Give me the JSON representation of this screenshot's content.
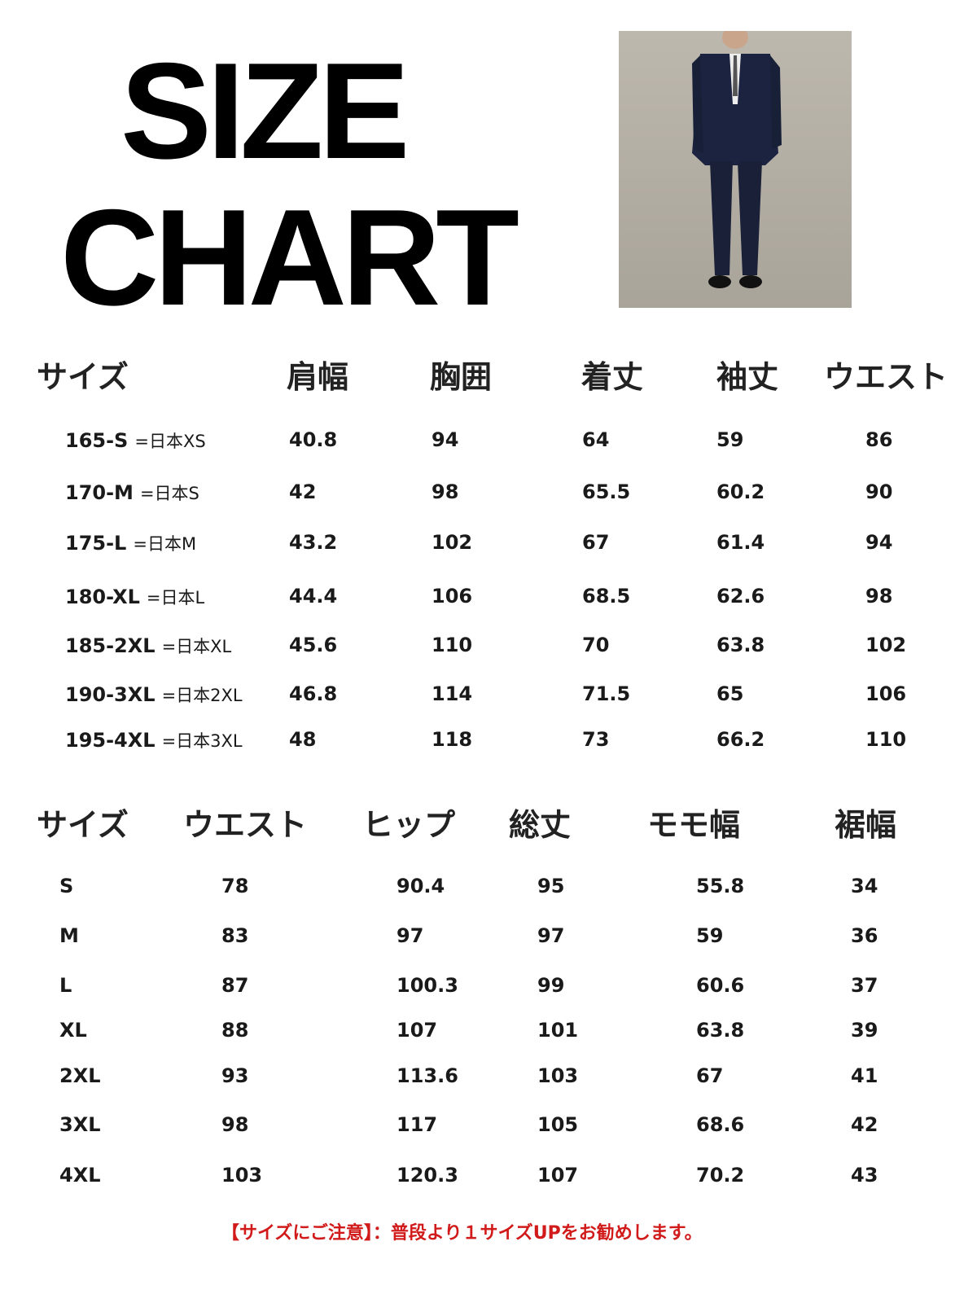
{
  "title_line1": "SIZE",
  "title_line2": "CHART",
  "jacket": {
    "headers": [
      "サイズ",
      "肩幅",
      "胸囲",
      "着丈",
      "袖丈",
      "ウエスト"
    ],
    "rows": [
      {
        "size": "165-S",
        "jp": "=日本XS",
        "values": [
          "40.8",
          "94",
          "64",
          "59",
          "86"
        ]
      },
      {
        "size": "170-M",
        "jp": "=日本S",
        "values": [
          "42",
          "98",
          "65.5",
          "60.2",
          "90"
        ]
      },
      {
        "size": "175-L",
        "jp": "=日本M",
        "values": [
          "43.2",
          "102",
          "67",
          "61.4",
          "94"
        ]
      },
      {
        "size": "180-XL",
        "jp": "=日本L",
        "values": [
          "44.4",
          "106",
          "68.5",
          "62.6",
          "98"
        ]
      },
      {
        "size": "185-2XL",
        "jp": "=日本XL",
        "values": [
          "45.6",
          "110",
          "70",
          "63.8",
          "102"
        ]
      },
      {
        "size": "190-3XL",
        "jp": "=日本2XL",
        "values": [
          "46.8",
          "114",
          "71.5",
          "65",
          "106"
        ]
      },
      {
        "size": "195-4XL",
        "jp": "=日本3XL",
        "values": [
          "48",
          "118",
          "73",
          "66.2",
          "110"
        ]
      }
    ]
  },
  "pants": {
    "headers": [
      "サイズ",
      "ウエスト",
      "ヒップ",
      "総丈",
      "モモ幅",
      "裾幅"
    ],
    "rows": [
      [
        "S",
        "78",
        "90.4",
        "95",
        "55.8",
        "34"
      ],
      [
        "M",
        "83",
        "97",
        "97",
        "59",
        "36"
      ],
      [
        "L",
        "87",
        "100.3",
        "99",
        "60.6",
        "37"
      ],
      [
        "XL",
        "88",
        "107",
        "101",
        "63.8",
        "39"
      ],
      [
        "2XL",
        "93",
        "113.6",
        "103",
        "67",
        "41"
      ],
      [
        "3XL",
        "98",
        "117",
        "105",
        "68.6",
        "42"
      ],
      [
        "4XL",
        "103",
        "120.3",
        "107",
        "70.2",
        "43"
      ]
    ]
  },
  "note": "【サイズにご注意】：普段より１サイズUPをお勧めします。",
  "colors": {
    "note": "#d11a1a",
    "photo_bg": "#b5b0a6",
    "suit": "#1c2340"
  }
}
